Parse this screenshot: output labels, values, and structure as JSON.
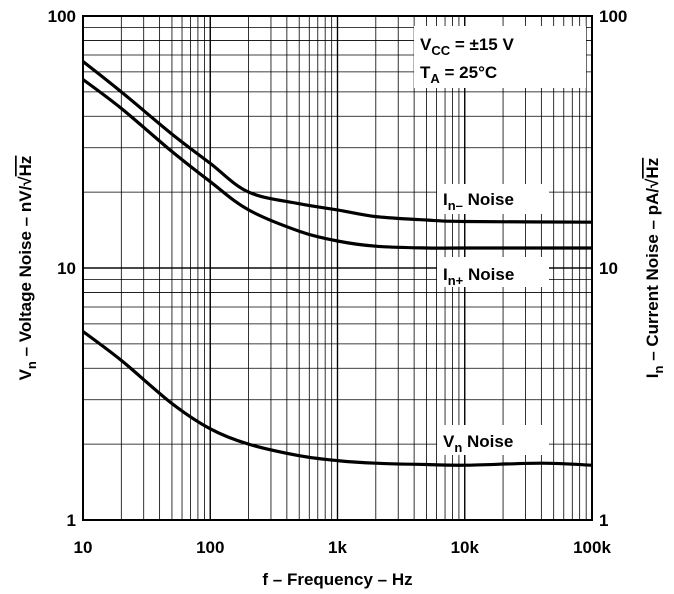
{
  "chart_data": {
    "type": "line",
    "x_scale": "log",
    "y_scale": "log",
    "xlim": [
      10,
      100000
    ],
    "ylim": [
      1,
      100
    ],
    "grid": true,
    "xlabel": "f – Frequency – Hz",
    "ylabel_left": {
      "main": "V",
      "sub": "n",
      "rest": " – Voltage Noise – nV/",
      "sqrt": "Hz"
    },
    "ylabel_right": {
      "main": "I",
      "sub": "n",
      "rest": " – Current Noise – pA/",
      "sqrt": "Hz"
    },
    "x_ticks": [
      {
        "value": 10,
        "label": "10"
      },
      {
        "value": 100,
        "label": "100"
      },
      {
        "value": 1000,
        "label": "1k"
      },
      {
        "value": 10000,
        "label": "10k"
      },
      {
        "value": 100000,
        "label": "100k"
      }
    ],
    "y_ticks": [
      {
        "value": 1,
        "label": "1"
      },
      {
        "value": 10,
        "label": "10"
      },
      {
        "value": 100,
        "label": "100"
      }
    ],
    "conditions": {
      "vcc": {
        "main": "V",
        "sub": "CC",
        "rest": " = ±15 V"
      },
      "ta": {
        "main": "T",
        "sub": "A",
        "rest": " = 25°C"
      }
    },
    "series": [
      {
        "name": "In– Noise",
        "label": {
          "main": "I",
          "sub": "n–",
          "rest": " Noise"
        },
        "x": [
          10,
          20,
          50,
          100,
          200,
          500,
          1000,
          2000,
          5000,
          10000,
          100000
        ],
        "y": [
          66,
          50,
          34,
          26,
          20,
          18,
          17,
          16,
          15.5,
          15.3,
          15.2
        ]
      },
      {
        "name": "In+ Noise",
        "label": {
          "main": "I",
          "sub": "n+",
          "rest": " Noise"
        },
        "x": [
          10,
          20,
          50,
          100,
          200,
          500,
          1000,
          2000,
          5000,
          10000,
          100000
        ],
        "y": [
          56,
          43,
          29,
          22,
          17,
          14,
          12.8,
          12.2,
          12,
          12,
          12
        ]
      },
      {
        "name": "Vn Noise",
        "label": {
          "main": "V",
          "sub": "n",
          "rest": " Noise"
        },
        "x": [
          10,
          20,
          50,
          100,
          200,
          500,
          1000,
          2000,
          5000,
          10000,
          40000,
          100000
        ],
        "y": [
          5.6,
          4.3,
          2.9,
          2.3,
          2.0,
          1.8,
          1.72,
          1.68,
          1.66,
          1.65,
          1.68,
          1.65
        ]
      }
    ]
  }
}
